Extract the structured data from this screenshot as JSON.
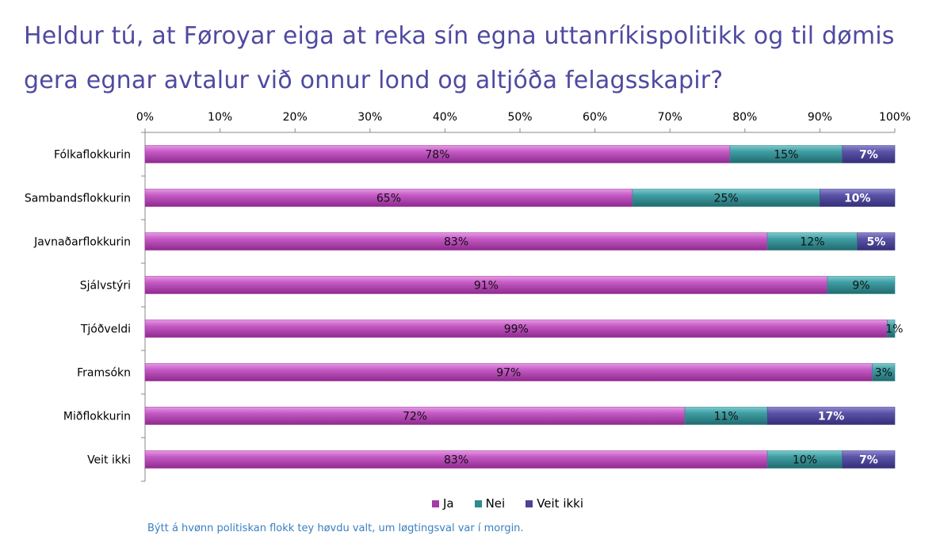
{
  "chart_data": {
    "type": "bar",
    "orientation": "horizontal",
    "stacked": "percent",
    "title": "Heldur tú, at Føroyar eiga at reka sín egna uttanríkispolitikk og til dømis gera egnar avtalur við onnur lond og altjóða felagsskapir?",
    "categories": [
      "Fólkaflokkurin",
      "Sambandsflokkurin",
      "Javnaðarflokkurin",
      "Sjálvstýri",
      "Tjóðveldi",
      "Framsókn",
      "Miðflokkurin",
      "Veit ikki"
    ],
    "series": [
      {
        "name": "Ja",
        "color": "#a63aa6",
        "values": [
          78,
          65,
          83,
          91,
          99,
          97,
          72,
          83
        ]
      },
      {
        "name": "Nei",
        "color": "#2f8b8f",
        "values": [
          15,
          25,
          12,
          9,
          1,
          3,
          11,
          10
        ]
      },
      {
        "name": "Veit ikki",
        "color": "#4b4393",
        "values": [
          7,
          10,
          5,
          0,
          0,
          0,
          17,
          7
        ]
      }
    ],
    "data_labels": [
      [
        "78%",
        "65%",
        "83%",
        "91%",
        "99%",
        "97%",
        "72%",
        "83%"
      ],
      [
        "15%",
        "25%",
        "12%",
        "9%",
        "1%",
        "3%",
        "11%",
        "10%"
      ],
      [
        "7%",
        "10%",
        "5%",
        "",
        "",
        "",
        "17%",
        "7%"
      ]
    ],
    "xlim": [
      0,
      100
    ],
    "xticks": [
      "0%",
      "10%",
      "20%",
      "30%",
      "40%",
      "50%",
      "60%",
      "70%",
      "80%",
      "90%",
      "100%"
    ],
    "x_axis_position": "top",
    "grid": false,
    "legend": "bottom"
  },
  "legend_items": [
    "Ja",
    "Nei",
    "Veit ikki"
  ],
  "footnote": "Býtt á hvønn politiskan flokk tey høvdu valt, um løgtingsval var í morgin."
}
